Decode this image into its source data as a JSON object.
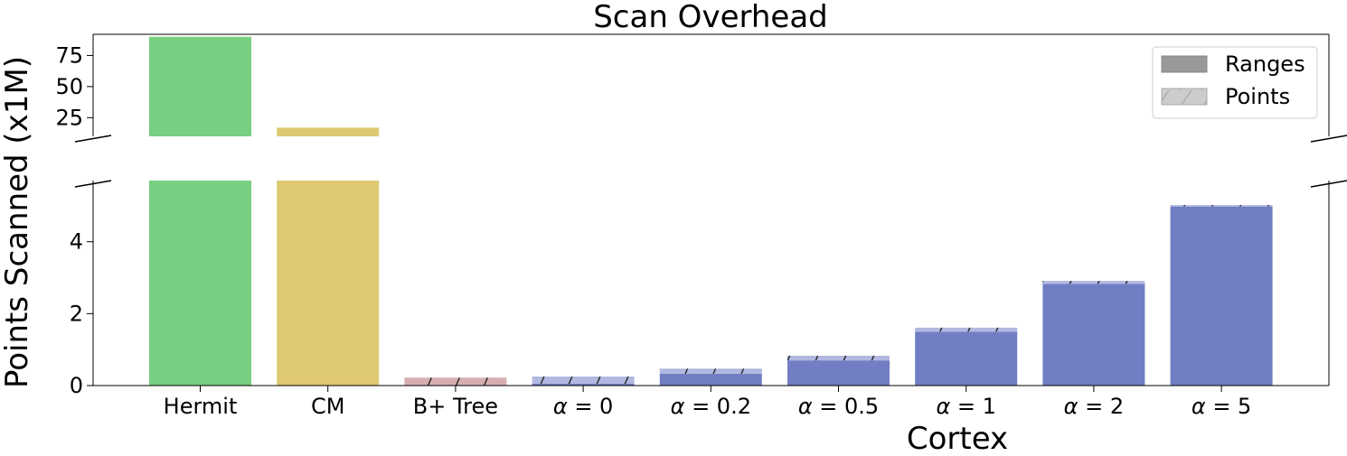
{
  "chart_data": {
    "type": "bar",
    "title": "Scan Overhead",
    "ylabel": "Points Scanned (x1M)",
    "xlabel": "Cortex",
    "broken_axis": true,
    "upper_panel": {
      "ylim": [
        10,
        92
      ],
      "yticks": [
        25,
        50,
        75
      ]
    },
    "lower_panel": {
      "ylim": [
        0,
        5.7
      ],
      "yticks": [
        0,
        2,
        4
      ]
    },
    "categories": [
      "Hermit",
      "CM",
      "B+ Tree",
      "α = 0",
      "α = 0.2",
      "α = 0.5",
      "α = 1",
      "α = 2",
      "α = 5"
    ],
    "series": [
      {
        "name": "Ranges",
        "values": [
          90,
          17,
          0,
          0.05,
          0.33,
          0.7,
          1.5,
          2.83,
          4.98
        ]
      },
      {
        "name": "Points",
        "values": [
          0,
          0,
          0.22,
          0.2,
          0.14,
          0.13,
          0.11,
          0.08,
          0.04
        ]
      }
    ],
    "bar_colors": [
      "#77cf81",
      "#dec872",
      "#d7aeb0",
      "#717ec4",
      "#717ec4",
      "#717ec4",
      "#717ec4",
      "#717ec4",
      "#717ec4"
    ],
    "points_colors": [
      "#77cf81",
      "#dec872",
      "#d7aeb0",
      "#b1b8e1",
      "#b1b8e1",
      "#b1b8e1",
      "#b1b8e1",
      "#b1b8e1",
      "#b1b8e1"
    ],
    "legend": {
      "position": "top-right",
      "entries": [
        {
          "label": "Ranges",
          "color": "#999999"
        },
        {
          "label": "Points",
          "color": "#cccccc"
        }
      ]
    },
    "grid": false
  }
}
